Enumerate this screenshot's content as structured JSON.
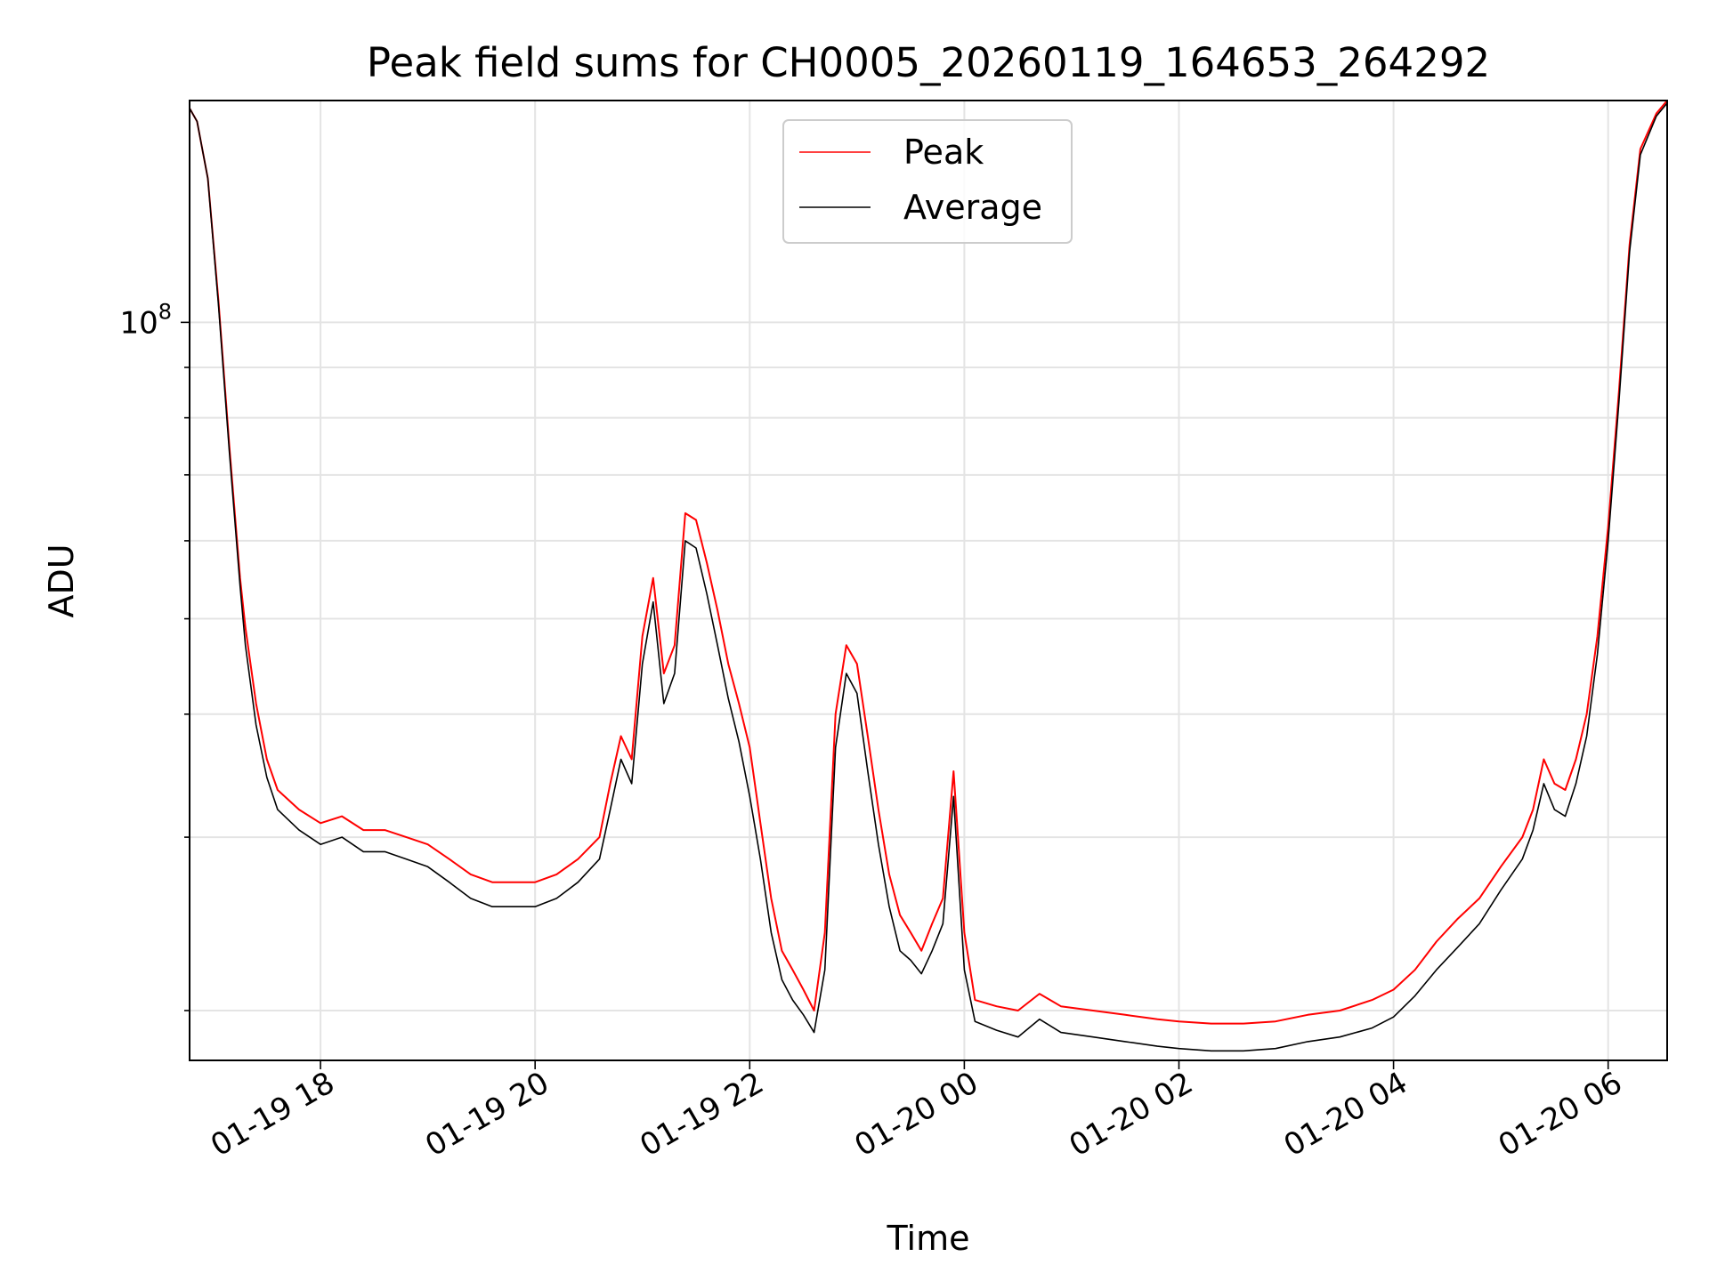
{
  "chart_data": {
    "type": "line",
    "title": "Peak field sums for CH0005_20260119_164653_264292",
    "xlabel": "Time",
    "ylabel": "ADU",
    "yscale": "log",
    "ylim": [
      17800000,
      168000000
    ],
    "xlim_hours": [
      16.78,
      30.55
    ],
    "grid": true,
    "legend_position": "top-center",
    "x_ticks": [
      {
        "label": "01-19 18",
        "hour": 18
      },
      {
        "label": "01-19 20",
        "hour": 20
      },
      {
        "label": "01-19 22",
        "hour": 22
      },
      {
        "label": "01-20 00",
        "hour": 24
      },
      {
        "label": "01-20 02",
        "hour": 26
      },
      {
        "label": "01-20 04",
        "hour": 28
      },
      {
        "label": "01-20 06",
        "hour": 30
      }
    ],
    "y_major_ticks": [
      {
        "base": "10",
        "exp": "8",
        "value": 100000000
      }
    ],
    "y_minor_ticks": [
      20000000,
      30000000,
      40000000,
      50000000,
      60000000,
      70000000,
      80000000,
      90000000,
      200000000
    ],
    "series": [
      {
        "name": "Peak",
        "color": "#ff0000",
        "x_hours": [
          16.78,
          16.85,
          16.95,
          17.05,
          17.15,
          17.25,
          17.3,
          17.4,
          17.5,
          17.6,
          17.8,
          18.0,
          18.2,
          18.4,
          18.6,
          18.8,
          19.0,
          19.2,
          19.4,
          19.6,
          19.8,
          20.0,
          20.2,
          20.4,
          20.6,
          20.7,
          20.8,
          20.9,
          21.0,
          21.1,
          21.2,
          21.3,
          21.4,
          21.5,
          21.6,
          21.7,
          21.8,
          21.9,
          22.0,
          22.1,
          22.2,
          22.3,
          22.4,
          22.5,
          22.6,
          22.7,
          22.8,
          22.9,
          23.0,
          23.1,
          23.2,
          23.3,
          23.4,
          23.5,
          23.6,
          23.7,
          23.8,
          23.9,
          24.0,
          24.1,
          24.3,
          24.5,
          24.7,
          24.8,
          24.9,
          25.2,
          25.5,
          25.8,
          26.0,
          26.3,
          26.6,
          26.9,
          27.2,
          27.5,
          27.8,
          28.0,
          28.2,
          28.4,
          28.6,
          28.8,
          29.0,
          29.2,
          29.3,
          29.4,
          29.5,
          29.6,
          29.7,
          29.8,
          29.9,
          30.0,
          30.1,
          30.2,
          30.3,
          30.45,
          30.55
        ],
        "values": [
          165000000,
          160000000,
          140000000,
          105000000,
          75000000,
          55000000,
          49000000,
          41000000,
          36000000,
          33500000,
          32000000,
          31000000,
          31500000,
          30500000,
          30500000,
          30000000,
          29500000,
          28500000,
          27500000,
          27000000,
          27000000,
          27000000,
          27500000,
          28500000,
          30000000,
          34000000,
          38000000,
          36000000,
          48000000,
          55000000,
          44000000,
          47000000,
          64000000,
          63000000,
          57000000,
          51000000,
          45000000,
          41000000,
          37000000,
          31000000,
          26000000,
          23000000,
          22000000,
          21000000,
          20000000,
          24000000,
          40000000,
          47000000,
          45000000,
          38000000,
          32000000,
          27500000,
          25000000,
          24000000,
          23000000,
          24500000,
          26000000,
          35000000,
          24000000,
          20500000,
          20200000,
          20000000,
          20800000,
          20500000,
          20200000,
          20000000,
          19800000,
          19600000,
          19500000,
          19400000,
          19400000,
          19500000,
          19800000,
          20000000,
          20500000,
          21000000,
          22000000,
          23500000,
          24800000,
          26000000,
          28000000,
          30000000,
          32000000,
          36000000,
          34000000,
          33500000,
          36000000,
          40000000,
          48000000,
          62000000,
          85000000,
          120000000,
          150000000,
          163000000,
          168000000
        ]
      },
      {
        "name": "Average",
        "color": "#000000",
        "x_hours": [
          16.78,
          16.85,
          16.95,
          17.05,
          17.15,
          17.25,
          17.3,
          17.4,
          17.5,
          17.6,
          17.8,
          18.0,
          18.2,
          18.4,
          18.6,
          18.8,
          19.0,
          19.2,
          19.4,
          19.6,
          19.8,
          20.0,
          20.2,
          20.4,
          20.6,
          20.7,
          20.8,
          20.9,
          21.0,
          21.1,
          21.2,
          21.3,
          21.4,
          21.5,
          21.6,
          21.7,
          21.8,
          21.9,
          22.0,
          22.1,
          22.2,
          22.3,
          22.4,
          22.5,
          22.6,
          22.7,
          22.8,
          22.9,
          23.0,
          23.1,
          23.2,
          23.3,
          23.4,
          23.5,
          23.6,
          23.7,
          23.8,
          23.9,
          24.0,
          24.1,
          24.3,
          24.5,
          24.7,
          24.8,
          24.9,
          25.2,
          25.5,
          25.8,
          26.0,
          26.3,
          26.6,
          26.9,
          27.2,
          27.5,
          27.8,
          28.0,
          28.2,
          28.4,
          28.6,
          28.8,
          29.0,
          29.2,
          29.3,
          29.4,
          29.5,
          29.6,
          29.7,
          29.8,
          29.9,
          30.0,
          30.1,
          30.2,
          30.3,
          30.45,
          30.55
        ],
        "values": [
          165000000,
          160000000,
          140000000,
          104000000,
          74000000,
          54000000,
          47000000,
          39000000,
          34500000,
          32000000,
          30500000,
          29500000,
          30000000,
          29000000,
          29000000,
          28500000,
          28000000,
          27000000,
          26000000,
          25500000,
          25500000,
          25500000,
          26000000,
          27000000,
          28500000,
          32000000,
          36000000,
          34000000,
          45000000,
          52000000,
          41000000,
          44000000,
          60000000,
          59000000,
          53000000,
          47000000,
          41500000,
          37500000,
          33000000,
          28500000,
          24000000,
          21500000,
          20500000,
          19800000,
          19000000,
          22000000,
          37000000,
          44000000,
          42000000,
          35000000,
          29500000,
          25500000,
          23000000,
          22500000,
          21800000,
          23000000,
          24500000,
          33000000,
          22000000,
          19500000,
          19100000,
          18800000,
          19600000,
          19300000,
          19000000,
          18800000,
          18600000,
          18400000,
          18300000,
          18200000,
          18200000,
          18300000,
          18600000,
          18800000,
          19200000,
          19700000,
          20700000,
          22000000,
          23200000,
          24500000,
          26500000,
          28500000,
          30500000,
          34000000,
          32000000,
          31500000,
          34000000,
          38000000,
          46000000,
          60000000,
          83000000,
          118000000,
          148000000,
          162000000,
          167000000
        ]
      }
    ]
  }
}
